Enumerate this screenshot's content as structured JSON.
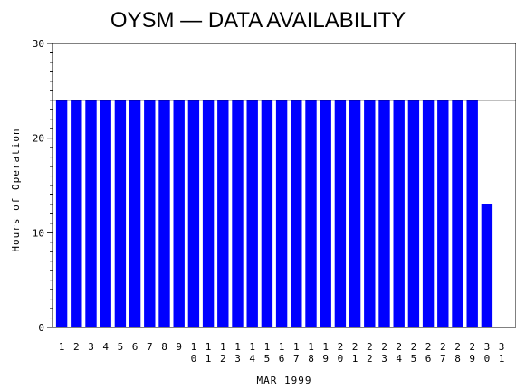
{
  "chart_data": {
    "type": "bar",
    "title": "OYSM  —  DATA AVAILABILITY",
    "xlabel": "MAR 1999",
    "ylabel": "Hours of Operation",
    "ylim": [
      0,
      30
    ],
    "yticks": [
      "0",
      "10",
      "20",
      "30"
    ],
    "reference_line": 24,
    "categories": [
      "1",
      "2",
      "3",
      "4",
      "5",
      "6",
      "7",
      "8",
      "9",
      "10",
      "11",
      "12",
      "13",
      "14",
      "15",
      "16",
      "17",
      "18",
      "19",
      "20",
      "21",
      "22",
      "23",
      "24",
      "25",
      "26",
      "27",
      "28",
      "29",
      "30",
      "31"
    ],
    "values": [
      24,
      24,
      24,
      24,
      24,
      24,
      24,
      24,
      24,
      24,
      24,
      24,
      24,
      24,
      24,
      24,
      24,
      24,
      24,
      24,
      24,
      24,
      24,
      24,
      24,
      24,
      24,
      24,
      24,
      13,
      0
    ],
    "bar_color": "#0000ff",
    "grid": false
  }
}
